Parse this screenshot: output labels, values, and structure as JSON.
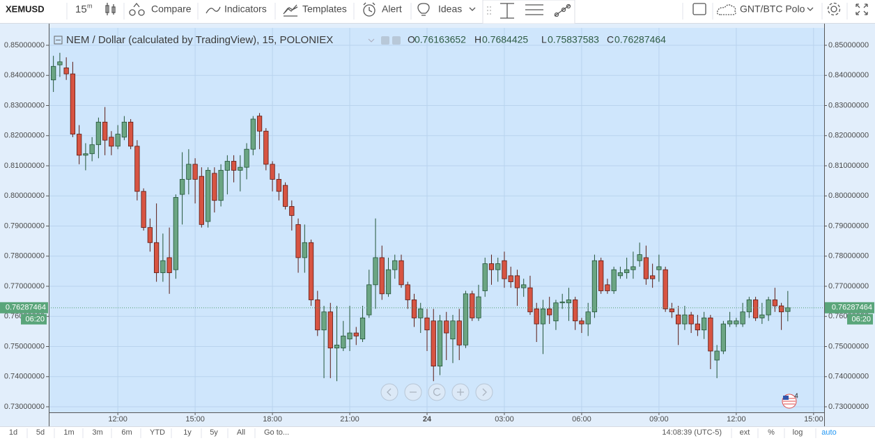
{
  "toolbar": {
    "symbol": "XEMUSD",
    "interval": "15",
    "interval_unit": "m",
    "items": [
      "Compare",
      "Indicators",
      "Templates",
      "Alert",
      "Ideas"
    ],
    "layout": "GNT/BTC Polo"
  },
  "chart_data": {
    "type": "candlestick",
    "title": "NEM / Dollar (calculated by TradingView), 15, POLONIEX",
    "ohlc_labels": [
      "O",
      "H",
      "L",
      "C"
    ],
    "x": [
      9.5,
      9.75,
      10,
      10.25,
      10.5,
      10.75,
      11,
      11.25,
      11.5,
      11.75,
      12,
      12.25,
      12.5,
      12.75,
      13,
      13.25,
      13.5,
      13.75,
      14,
      14.25,
      14.5,
      14.75,
      15,
      15.25,
      15.5,
      15.75,
      16,
      16.25,
      16.5,
      16.75,
      17,
      17.25,
      17.5,
      17.75,
      18,
      18.25,
      18.5,
      18.75,
      19,
      19.25,
      19.5,
      19.75,
      20,
      20.25,
      20.5,
      20.75,
      21,
      21.25,
      21.5,
      21.75,
      22,
      22.25,
      22.5,
      22.75,
      23,
      23.25,
      23.5,
      23.75,
      24,
      24.25,
      24.5,
      24.75,
      25,
      25.25,
      25.5,
      25.75,
      26,
      26.25,
      26.5,
      26.75,
      27,
      27.25,
      27.5,
      27.75,
      28,
      28.25,
      28.5,
      28.75,
      29,
      29.25,
      29.5,
      29.75,
      30,
      30.25,
      30.5,
      30.75,
      31,
      31.25,
      31.5,
      31.75,
      32,
      32.25,
      32.5,
      32.75,
      33,
      33.25,
      33.5,
      33.75,
      34,
      34.25,
      34.5,
      34.75,
      35,
      35.25,
      35.5,
      35.75,
      36,
      36.25,
      36.5,
      36.75,
      37,
      37.25,
      37.5,
      37.75,
      38
    ],
    "open": [
      0.8385,
      0.8435,
      0.8425,
      0.8405,
      0.8205,
      0.8135,
      0.814,
      0.817,
      0.8245,
      0.8195,
      0.8165,
      0.8195,
      0.8245,
      0.8165,
      0.8015,
      0.7895,
      0.7845,
      0.7745,
      0.7795,
      0.7755,
      0.8005,
      0.8055,
      0.8105,
      0.8065,
      0.7915,
      0.8075,
      0.7985,
      0.8085,
      0.8115,
      0.8085,
      0.8095,
      0.8155,
      0.8265,
      0.8215,
      0.8105,
      0.8055,
      0.8035,
      0.7965,
      0.7905,
      0.7795,
      0.7845,
      0.7655,
      0.7555,
      0.7615,
      0.7495,
      0.7495,
      0.7525,
      0.7545,
      0.7525,
      0.7605,
      0.7705,
      0.7795,
      0.7675,
      0.7755,
      0.7785,
      0.7705,
      0.7655,
      0.7595,
      0.7595,
      0.7585,
      0.7435,
      0.7585,
      0.7525,
      0.7585,
      0.7505,
      0.7675,
      0.7595,
      0.7685,
      0.7775,
      0.7755,
      0.7785,
      0.7735,
      0.7735,
      0.7695,
      0.7695,
      0.7625,
      0.7575,
      0.7625,
      0.7585,
      0.7645,
      0.7645,
      0.7655,
      0.7585,
      0.7575,
      0.7615,
      0.7785,
      0.7705,
      0.7685,
      0.7735,
      0.7745,
      0.7755,
      0.7785,
      0.7795,
      0.7735,
      0.7755,
      0.7755,
      0.7625,
      0.7605,
      0.7575,
      0.7605,
      0.7575,
      0.7555,
      0.7595,
      0.7455,
      0.7485,
      0.7575,
      0.7575,
      0.7575,
      0.7615,
      0.7655,
      0.7595,
      0.7605,
      0.7655,
      0.7635,
      0.76163652
    ],
    "high": [
      0.8465,
      0.8475,
      0.846,
      0.8445,
      0.8235,
      0.8175,
      0.8195,
      0.826,
      0.8295,
      0.8215,
      0.8235,
      0.8265,
      0.8255,
      0.8185,
      0.8025,
      0.7925,
      0.7975,
      0.7875,
      0.7895,
      0.8005,
      0.8145,
      0.8155,
      0.8125,
      0.8095,
      0.8095,
      0.8095,
      0.8105,
      0.8135,
      0.8135,
      0.8135,
      0.8175,
      0.8265,
      0.8275,
      0.8225,
      0.8115,
      0.8075,
      0.8045,
      0.7985,
      0.7925,
      0.7905,
      0.7855,
      0.7685,
      0.7635,
      0.7645,
      0.7635,
      0.7585,
      0.7635,
      0.7565,
      0.7635,
      0.7755,
      0.7925,
      0.7835,
      0.7795,
      0.7805,
      0.7805,
      0.7715,
      0.7675,
      0.7645,
      0.7625,
      0.7625,
      0.7605,
      0.7615,
      0.7605,
      0.7625,
      0.7685,
      0.7685,
      0.7705,
      0.7795,
      0.7805,
      0.7795,
      0.7815,
      0.7765,
      0.7755,
      0.7725,
      0.7735,
      0.7645,
      0.7655,
      0.7665,
      0.7655,
      0.7675,
      0.7695,
      0.7665,
      0.7595,
      0.7645,
      0.7805,
      0.7795,
      0.7725,
      0.7765,
      0.7765,
      0.7795,
      0.7815,
      0.7845,
      0.7835,
      0.7775,
      0.7805,
      0.7765,
      0.7645,
      0.7635,
      0.7635,
      0.7615,
      0.7605,
      0.7615,
      0.7605,
      0.7505,
      0.7585,
      0.7615,
      0.7595,
      0.7645,
      0.7665,
      0.7665,
      0.7645,
      0.7665,
      0.7695,
      0.7645,
      0.7684425
    ],
    "low": [
      0.8345,
      0.8395,
      0.8385,
      0.8195,
      0.8105,
      0.8085,
      0.8115,
      0.8125,
      0.8135,
      0.8135,
      0.8155,
      0.8185,
      0.8155,
      0.7985,
      0.7885,
      0.7815,
      0.7715,
      0.7715,
      0.7675,
      0.7725,
      0.7905,
      0.8005,
      0.7975,
      0.7895,
      0.7895,
      0.7945,
      0.7965,
      0.8005,
      0.8045,
      0.8015,
      0.8055,
      0.8135,
      0.8155,
      0.8085,
      0.8015,
      0.7985,
      0.7955,
      0.7885,
      0.7745,
      0.7745,
      0.7635,
      0.7535,
      0.7395,
      0.7395,
      0.7385,
      0.7485,
      0.7485,
      0.7505,
      0.7515,
      0.7595,
      0.7625,
      0.7655,
      0.7665,
      0.7725,
      0.7695,
      0.7625,
      0.7565,
      0.7545,
      0.7485,
      0.7385,
      0.7405,
      0.7455,
      0.7445,
      0.7455,
      0.7495,
      0.7585,
      0.7585,
      0.7665,
      0.7705,
      0.7715,
      0.7695,
      0.7695,
      0.7635,
      0.7665,
      0.7605,
      0.7515,
      0.7475,
      0.7575,
      0.7555,
      0.7625,
      0.7585,
      0.7555,
      0.7545,
      0.7535,
      0.7595,
      0.7675,
      0.7675,
      0.7675,
      0.7725,
      0.7725,
      0.7725,
      0.7765,
      0.7705,
      0.7695,
      0.7715,
      0.7615,
      0.7595,
      0.7505,
      0.7555,
      0.7545,
      0.7535,
      0.7525,
      0.7425,
      0.7395,
      0.7475,
      0.7565,
      0.7565,
      0.7565,
      0.7595,
      0.7585,
      0.7575,
      0.7585,
      0.7615,
      0.7555,
      0.75837583
    ],
    "close": [
      0.843,
      0.8445,
      0.8405,
      0.8205,
      0.8135,
      0.814,
      0.817,
      0.8245,
      0.8185,
      0.8165,
      0.8205,
      0.8245,
      0.8165,
      0.8015,
      0.7895,
      0.7845,
      0.7745,
      0.7785,
      0.7745,
      0.7995,
      0.8055,
      0.8105,
      0.8055,
      0.7905,
      0.8085,
      0.7985,
      0.8085,
      0.8115,
      0.8085,
      0.8095,
      0.8155,
      0.8255,
      0.8215,
      0.8105,
      0.8055,
      0.8015,
      0.7965,
      0.7935,
      0.7795,
      0.7845,
      0.7655,
      0.7555,
      0.7615,
      0.7495,
      0.7505,
      0.7535,
      0.7545,
      0.7535,
      0.7595,
      0.7705,
      0.7795,
      0.7675,
      0.7755,
      0.7785,
      0.7705,
      0.7655,
      0.7595,
      0.7625,
      0.7555,
      0.7435,
      0.7585,
      0.7545,
      0.7585,
      0.7505,
      0.7675,
      0.7595,
      0.7665,
      0.7775,
      0.7755,
      0.7775,
      0.7725,
      0.7715,
      0.7695,
      0.7705,
      0.7615,
      0.7575,
      0.7625,
      0.7605,
      0.7645,
      0.7648,
      0.7655,
      0.7585,
      0.7575,
      0.7615,
      0.7785,
      0.7685,
      0.7685,
      0.7755,
      0.7745,
      0.7755,
      0.7765,
      0.7805,
      0.7725,
      0.7725,
      0.7765,
      0.7625,
      0.7615,
      0.7575,
      0.7605,
      0.7575,
      0.7555,
      0.7595,
      0.7485,
      0.7485,
      0.7575,
      0.7585,
      0.7585,
      0.7615,
      0.7655,
      0.7595,
      0.7605,
      0.7655,
      0.7635,
      0.7615,
      0.76287464
    ],
    "up_color": "#6ba583",
    "down_color": "#d75442",
    "xlim": [
      9.32,
      39.41
    ],
    "xticks": [
      {
        "value": 12,
        "label": "12:00"
      },
      {
        "value": 15,
        "label": "15:00"
      },
      {
        "value": 18,
        "label": "18:00"
      },
      {
        "value": 21,
        "label": "21:00"
      },
      24,
      {
        "value": 27,
        "label": "03:00"
      },
      {
        "value": 30,
        "label": "06:00"
      },
      {
        "value": 33,
        "label": "09:00"
      },
      {
        "value": 36,
        "label": "12:00"
      },
      {
        "value": 39,
        "label": "15:00"
      }
    ],
    "ylim": [
      0.72815,
      0.85578
    ],
    "yticks": [
      {
        "value": 0.73,
        "label": "0.73000000"
      },
      {
        "value": 0.74,
        "label": "0.74000000"
      },
      {
        "value": 0.75,
        "label": "0.75000000"
      },
      {
        "value": 0.76,
        "label": "0.76000000"
      },
      {
        "value": 0.77,
        "label": "0.77000000"
      },
      {
        "value": 0.78,
        "label": "0.78000000"
      },
      {
        "value": 0.79,
        "label": "0.79000000"
      },
      {
        "value": 0.8,
        "label": "0.80000000"
      },
      {
        "value": 0.81,
        "label": "0.81000000"
      },
      {
        "value": 0.82,
        "label": "0.82000000"
      },
      {
        "value": 0.83,
        "label": "0.83000000"
      },
      {
        "value": 0.84,
        "label": "0.84000000"
      },
      {
        "value": 0.85,
        "label": "0.85000000"
      }
    ],
    "grid": true
  },
  "countdown": "06:20",
  "bottom_bar": {
    "ranges": [
      "1d",
      "5d",
      "1m",
      "3m",
      "6m",
      "YTD",
      "1y",
      "5y",
      "All"
    ],
    "goto": "Go to...",
    "clock": "14:08:39 (UTC-5)",
    "options": [
      "ext",
      "%",
      "log",
      "auto"
    ]
  },
  "notification_count": 4
}
